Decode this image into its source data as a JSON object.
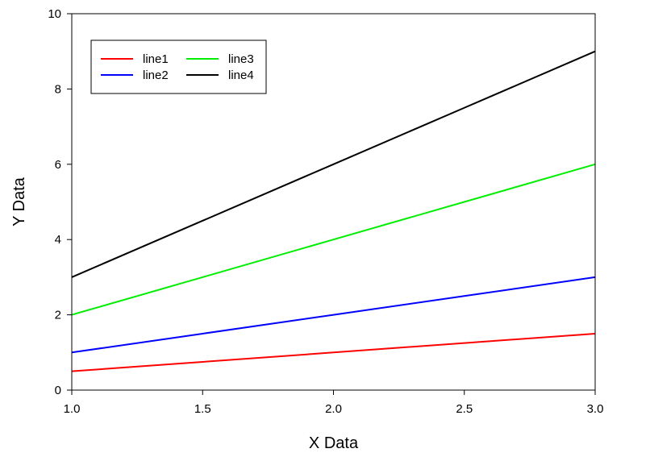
{
  "chart_data": {
    "type": "line",
    "title": "",
    "xlabel": "X Data",
    "ylabel": "Y Data",
    "xlim": [
      1.0,
      3.0
    ],
    "ylim": [
      0,
      10
    ],
    "xticks": [
      1.0,
      1.5,
      2.0,
      2.5,
      3.0
    ],
    "xtick_labels": [
      "1.0",
      "1.5",
      "2.0",
      "2.5",
      "3.0"
    ],
    "yticks": [
      0,
      2,
      4,
      6,
      8,
      10
    ],
    "ytick_labels": [
      "0",
      "2",
      "4",
      "6",
      "8",
      "10"
    ],
    "grid": false,
    "legend_position": "top-left",
    "x": [
      1.0,
      1.5,
      2.0,
      2.5,
      3.0
    ],
    "series": [
      {
        "name": "line1",
        "color": "#ff0000",
        "values": [
          0.5,
          0.75,
          1.0,
          1.25,
          1.5
        ]
      },
      {
        "name": "line2",
        "color": "#0000ff",
        "values": [
          1.0,
          1.5,
          2.0,
          2.5,
          3.0
        ]
      },
      {
        "name": "line3",
        "color": "#00ee00",
        "values": [
          2.0,
          3.0,
          4.0,
          5.0,
          6.0
        ]
      },
      {
        "name": "line4",
        "color": "#000000",
        "values": [
          3.0,
          4.5,
          6.0,
          7.5,
          9.0
        ]
      }
    ]
  }
}
